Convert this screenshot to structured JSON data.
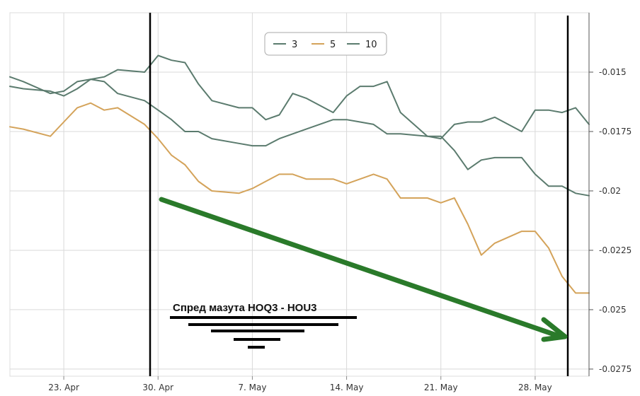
{
  "chart_data": {
    "type": "line",
    "title": "",
    "xlabel": "",
    "ylabel": "",
    "x": [
      "2013-04-19",
      "2013-04-20",
      "2013-04-22",
      "2013-04-23",
      "2013-04-24",
      "2013-04-25",
      "2013-04-26",
      "2013-04-27",
      "2013-04-29",
      "2013-04-30",
      "2013-05-01",
      "2013-05-02",
      "2013-05-03",
      "2013-05-04",
      "2013-05-06",
      "2013-05-07",
      "2013-05-08",
      "2013-05-09",
      "2013-05-10",
      "2013-05-11",
      "2013-05-13",
      "2013-05-14",
      "2013-05-15",
      "2013-05-16",
      "2013-05-17",
      "2013-05-18",
      "2013-05-20",
      "2013-05-21",
      "2013-05-22",
      "2013-05-23",
      "2013-05-24",
      "2013-05-25",
      "2013-05-27",
      "2013-05-28",
      "2013-05-29",
      "2013-05-30",
      "2013-05-31",
      "2013-06-01"
    ],
    "x_ticks": [
      "23. Apr",
      "30. Apr",
      "7. May",
      "14. May",
      "21. May",
      "28. May"
    ],
    "x_tick_dates": [
      "2013-04-23",
      "2013-04-30",
      "2013-05-07",
      "2013-05-14",
      "2013-05-21",
      "2013-05-28"
    ],
    "y_ticks": [
      "-0.015",
      "-0.0175",
      "-0.02",
      "-0.0225",
      "-0.025",
      "-0.0275"
    ],
    "y_tick_values": [
      -0.015,
      -0.0175,
      -0.02,
      -0.0225,
      -0.025,
      -0.0275
    ],
    "ylim": [
      -0.0278,
      -0.0125
    ],
    "grid": true,
    "legend": "top-center",
    "series": [
      {
        "name": "3",
        "color": "#5b7b6e",
        "values": [
          -0.0152,
          -0.0154,
          -0.0159,
          -0.0158,
          -0.0154,
          -0.0153,
          -0.0154,
          -0.0159,
          -0.0162,
          -0.0166,
          -0.017,
          -0.0175,
          -0.0175,
          -0.0178,
          -0.018,
          -0.0181,
          -0.0181,
          -0.0178,
          -0.0176,
          -0.0174,
          -0.017,
          -0.017,
          -0.0171,
          -0.0172,
          -0.0176,
          -0.0176,
          -0.0177,
          -0.0177,
          -0.0183,
          -0.0191,
          -0.0187,
          -0.0186,
          -0.0186,
          -0.0193,
          -0.0198,
          -0.0198,
          -0.0201,
          -0.0202
        ]
      },
      {
        "name": "5",
        "color": "#d4a35a",
        "values": [
          -0.0173,
          -0.0174,
          -0.0177,
          -0.0171,
          -0.0165,
          -0.0163,
          -0.0166,
          -0.0165,
          -0.0172,
          -0.0178,
          -0.0185,
          -0.0189,
          -0.0196,
          -0.02,
          -0.0201,
          -0.0199,
          -0.0196,
          -0.0193,
          -0.0193,
          -0.0195,
          -0.0195,
          -0.0197,
          -0.0195,
          -0.0193,
          -0.0195,
          -0.0203,
          -0.0203,
          -0.0205,
          -0.0203,
          -0.0214,
          -0.0227,
          -0.0222,
          -0.0217,
          -0.0217,
          -0.0224,
          -0.0236,
          -0.0243,
          -0.0243
        ]
      },
      {
        "name": "10",
        "color": "#5b7b6e",
        "values": [
          -0.0156,
          -0.0157,
          -0.0158,
          -0.016,
          -0.0157,
          -0.0153,
          -0.0152,
          -0.0149,
          -0.015,
          -0.0143,
          -0.0145,
          -0.0146,
          -0.0155,
          -0.0162,
          -0.0165,
          -0.0165,
          -0.017,
          -0.0168,
          -0.0159,
          -0.0161,
          -0.0167,
          -0.016,
          -0.0156,
          -0.0156,
          -0.0154,
          -0.0167,
          -0.0177,
          -0.0178,
          -0.0172,
          -0.0171,
          -0.0171,
          -0.0169,
          -0.0175,
          -0.0166,
          -0.0166,
          -0.0167,
          -0.0165,
          -0.0172
        ]
      }
    ],
    "annotations": [
      "Спред мазута  HOQ3 - HOU3"
    ]
  },
  "legend": {
    "items": [
      "3",
      "5",
      "10"
    ]
  }
}
